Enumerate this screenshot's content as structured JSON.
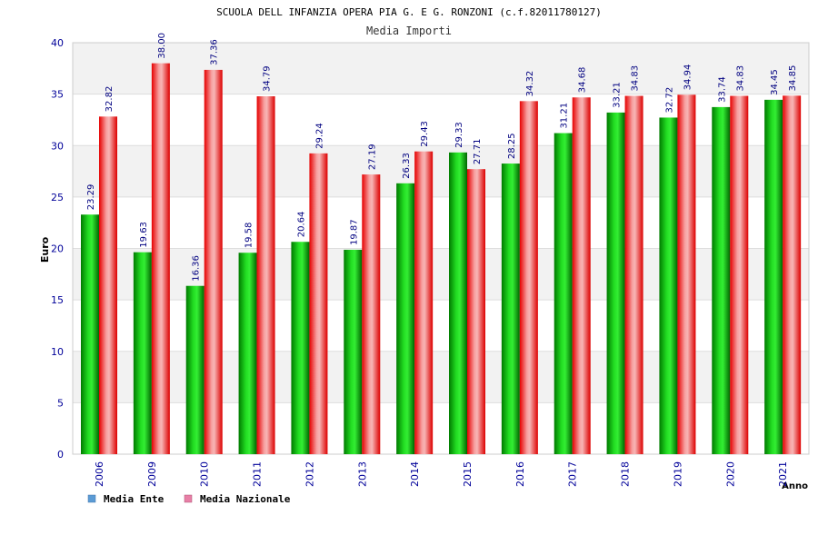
{
  "chart_data": {
    "type": "bar",
    "title": "SCUOLA DELL INFANZIA OPERA PIA G. E G. RONZONI (c.f.82011780127)",
    "subtitle": "Media Importi",
    "xlabel": "Anno",
    "ylabel": "Euro",
    "ylim": [
      0,
      40
    ],
    "yticks": [
      0,
      5,
      10,
      15,
      20,
      25,
      30,
      35,
      40
    ],
    "grid": true,
    "legend_position": "bottom-left",
    "categories": [
      "2006",
      "2009",
      "2010",
      "2011",
      "2012",
      "2013",
      "2014",
      "2015",
      "2016",
      "2017",
      "2018",
      "2019",
      "2020",
      "2021"
    ],
    "series": [
      {
        "name": "Media Ente",
        "legend_color": "#5b9bd5",
        "bar_color": "#00b400",
        "values": [
          23.29,
          19.63,
          16.36,
          19.58,
          20.64,
          19.87,
          26.33,
          29.33,
          28.25,
          31.21,
          33.21,
          32.72,
          33.74,
          34.45
        ],
        "labels": [
          "23.29",
          "19.63",
          "16.36",
          "19.58",
          "20.64",
          "19.87",
          "26.33",
          "29.33",
          "28.25",
          "31.21",
          "33.21",
          "32.72",
          "33.74",
          "34.45"
        ]
      },
      {
        "name": "Media Nazionale",
        "legend_color": "#e87fa6",
        "bar_color": "#ee1c1c",
        "values": [
          32.82,
          38.0,
          37.36,
          34.79,
          29.24,
          27.19,
          29.43,
          27.71,
          34.32,
          34.68,
          34.83,
          34.94,
          34.83,
          34.85
        ],
        "labels": [
          "32.82",
          "38.00",
          "37.36",
          "34.79",
          "29.24",
          "27.19",
          "29.43",
          "27.71",
          "34.32",
          "34.68",
          "34.83",
          "34.94",
          "34.83",
          "34.85"
        ]
      }
    ],
    "colors": {
      "axis_text": "#000099",
      "label_text": "#000080",
      "band": "#f2f2f2",
      "grid": "#dddddd"
    }
  }
}
